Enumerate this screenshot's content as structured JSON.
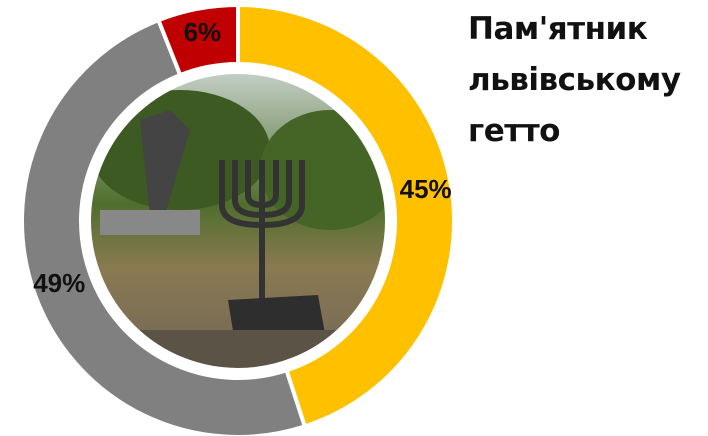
{
  "chart_data": {
    "type": "donut",
    "title": "Пам'ятник львівському гетто",
    "categories": [
      null,
      null,
      null
    ],
    "values": [
      45,
      49,
      6
    ],
    "value_labels": [
      "45%",
      "49%",
      "6%"
    ],
    "colors": [
      "#ffc000",
      "#808080",
      "#c00000"
    ]
  }
}
